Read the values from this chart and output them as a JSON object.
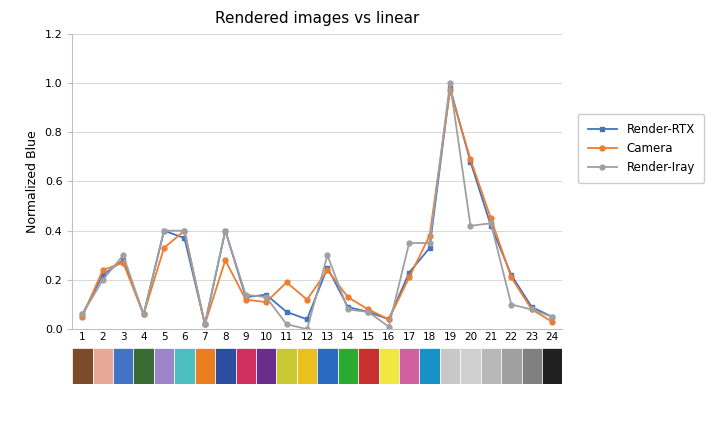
{
  "title": "Rendered images vs linear",
  "ylabel": "Normalized Blue",
  "x": [
    1,
    2,
    3,
    4,
    5,
    6,
    7,
    8,
    9,
    10,
    11,
    12,
    13,
    14,
    15,
    16,
    17,
    18,
    19,
    20,
    21,
    22,
    23,
    24
  ],
  "render_rtx": [
    0.06,
    0.22,
    0.28,
    0.06,
    0.4,
    0.37,
    0.02,
    0.4,
    0.13,
    0.14,
    0.07,
    0.04,
    0.25,
    0.09,
    0.07,
    0.04,
    0.23,
    0.33,
    0.98,
    0.68,
    0.42,
    0.22,
    0.09,
    0.05
  ],
  "camera": [
    0.05,
    0.24,
    0.27,
    0.06,
    0.33,
    0.4,
    0.02,
    0.28,
    0.12,
    0.11,
    0.19,
    0.12,
    0.24,
    0.13,
    0.08,
    0.04,
    0.21,
    0.38,
    0.97,
    0.69,
    0.45,
    0.21,
    0.08,
    0.03
  ],
  "render_iray": [
    0.06,
    0.2,
    0.3,
    0.06,
    0.4,
    0.4,
    0.02,
    0.4,
    0.14,
    0.13,
    0.02,
    0.0,
    0.3,
    0.08,
    0.07,
    0.01,
    0.35,
    0.35,
    1.0,
    0.42,
    0.43,
    0.1,
    0.08,
    0.05
  ],
  "rtx_color": "#4472C4",
  "camera_color": "#ED7D31",
  "iray_color": "#A0A0A0",
  "ylim": [
    0,
    1.2
  ],
  "yticks": [
    0,
    0.2,
    0.4,
    0.6,
    0.8,
    1.0,
    1.2
  ],
  "color_bars": [
    "#7B4B2A",
    "#E8A898",
    "#4472C4",
    "#3B6B35",
    "#9B85C8",
    "#4BBFBF",
    "#E87E20",
    "#2B4FA0",
    "#D03060",
    "#6B2D8B",
    "#C8C830",
    "#E8C020",
    "#2B6BBF",
    "#2BAA30",
    "#C83030",
    "#F0E840",
    "#D060A0",
    "#1890C8",
    "#C8C8C8",
    "#D0D0D0",
    "#B8B8B8",
    "#A0A0A0",
    "#808080",
    "#202020"
  ]
}
